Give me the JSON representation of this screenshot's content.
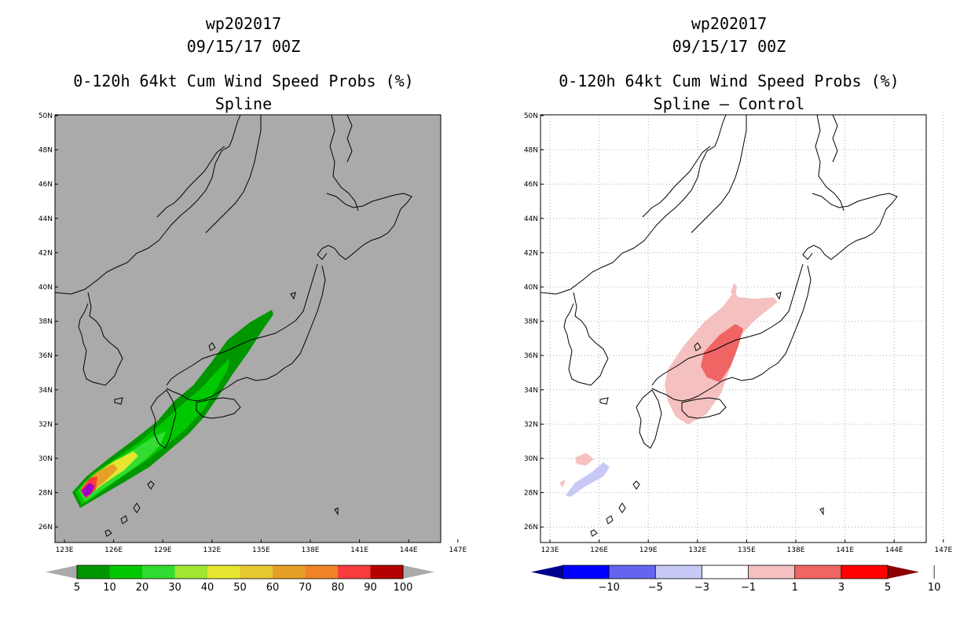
{
  "left": {
    "title_lines": [
      "wp202017",
      "09/15/17 00Z"
    ],
    "subtitle_lines": [
      "0-120h 64kt Cum Wind Speed Probs (%)",
      "Spline"
    ],
    "colorbar": {
      "colors": [
        "#009600",
        "#00c800",
        "#32dc32",
        "#a0e632",
        "#e6e632",
        "#e6c832",
        "#e6a028",
        "#f08228",
        "#fa3c3c",
        "#b40000",
        "#a000c8"
      ],
      "labels": [
        "5",
        "10",
        "20",
        "30",
        "40",
        "50",
        "60",
        "70",
        "80",
        "90",
        "100"
      ]
    }
  },
  "right": {
    "title_lines": [
      "wp202017",
      "09/15/17 00Z"
    ],
    "subtitle_lines": [
      "0-120h 64kt Cum Wind Speed Probs (%)",
      "Spline – Control"
    ],
    "colorbar": {
      "colors": [
        "#00008c",
        "#0000ff",
        "#6464f0",
        "#c8c8f5",
        "#ffffff",
        "#f5c0c0",
        "#f06464",
        "#ff0000",
        "#8c0000"
      ],
      "labels": [
        "−10",
        "−5",
        "−3",
        "−1",
        "1",
        "3",
        "5",
        "10"
      ]
    }
  },
  "axes": {
    "lat_labels": [
      "50N",
      "48N",
      "46N",
      "44N",
      "42N",
      "40N",
      "38N",
      "36N",
      "34N",
      "32N",
      "30N",
      "28N",
      "26N"
    ],
    "lon_labels": [
      "123E",
      "126E",
      "129E",
      "132E",
      "135E",
      "138E",
      "141E",
      "144E",
      "147E"
    ]
  },
  "colors": {
    "map_bg_left": "#aaaaaa",
    "map_bg_right": "#ffffff",
    "grid": "#999999"
  }
}
